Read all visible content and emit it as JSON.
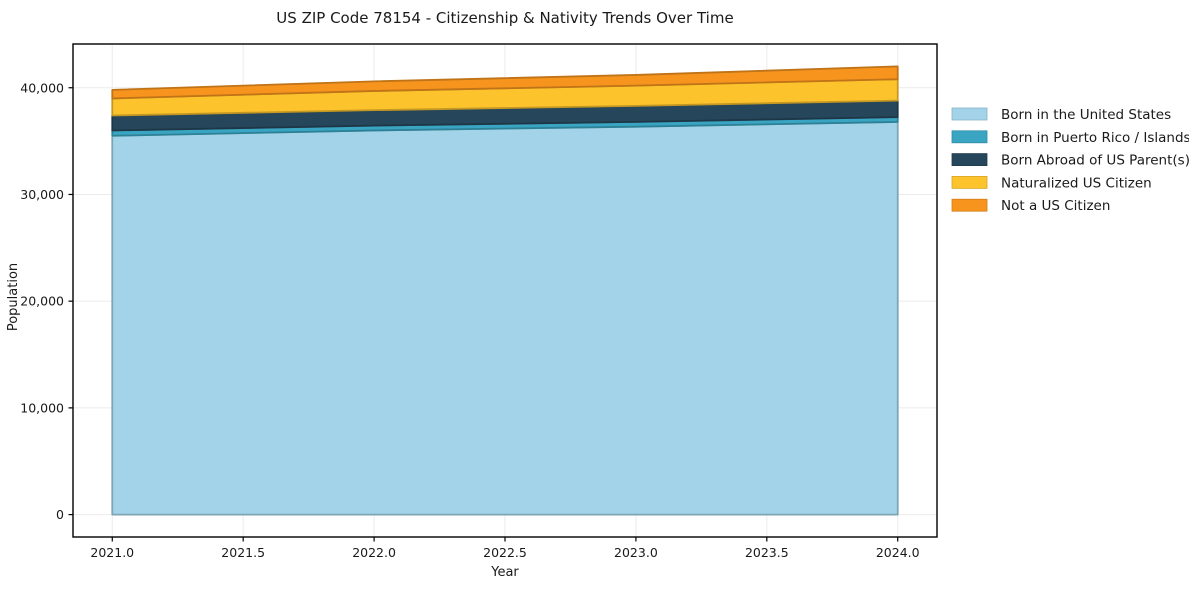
{
  "chart_data": {
    "type": "area",
    "stacked": true,
    "title": "US ZIP Code 78154 - Citizenship & Nativity Trends Over Time",
    "xlabel": "Year",
    "ylabel": "Population",
    "x": [
      2021,
      2022,
      2023,
      2024
    ],
    "series": [
      {
        "name": "Born in the United States",
        "color": "#a3d3e8",
        "values": [
          35500,
          36000,
          36350,
          36800
        ]
      },
      {
        "name": "Born in Puerto Rico / Islands",
        "color": "#3aa5c2",
        "values": [
          500,
          450,
          450,
          450
        ]
      },
      {
        "name": "Born Abroad of US Parent(s)",
        "color": "#26475b",
        "values": [
          1400,
          1450,
          1500,
          1550
        ]
      },
      {
        "name": "Naturalized US Citizen",
        "color": "#fcc32d",
        "values": [
          1600,
          1800,
          1900,
          2000
        ]
      },
      {
        "name": "Not a US Citizen",
        "color": "#f6941e",
        "values": [
          800,
          900,
          1000,
          1200
        ]
      }
    ],
    "totals": [
      39800,
      40600,
      41200,
      42000
    ],
    "xlim": [
      2020.85,
      2024.15
    ],
    "ylim": [
      -2100,
      44100
    ],
    "xticks": [
      2021.0,
      2021.5,
      2022.0,
      2022.5,
      2023.0,
      2023.5,
      2024.0
    ],
    "xtick_labels": [
      "2021.0",
      "2021.5",
      "2022.0",
      "2022.5",
      "2023.0",
      "2023.5",
      "2024.0"
    ],
    "yticks": [
      0,
      10000,
      20000,
      30000,
      40000
    ],
    "ytick_labels": [
      "0",
      "10,000",
      "20,000",
      "30,000",
      "40,000"
    ],
    "grid": true,
    "grid_color": "#ebebeb",
    "frame_color": "#000000",
    "legend_position": "right",
    "legend_entries": [
      "Born in the United States",
      "Born in Puerto Rico / Islands",
      "Born Abroad of US Parent(s)",
      "Naturalized US Citizen",
      "Not a US Citizen"
    ]
  }
}
